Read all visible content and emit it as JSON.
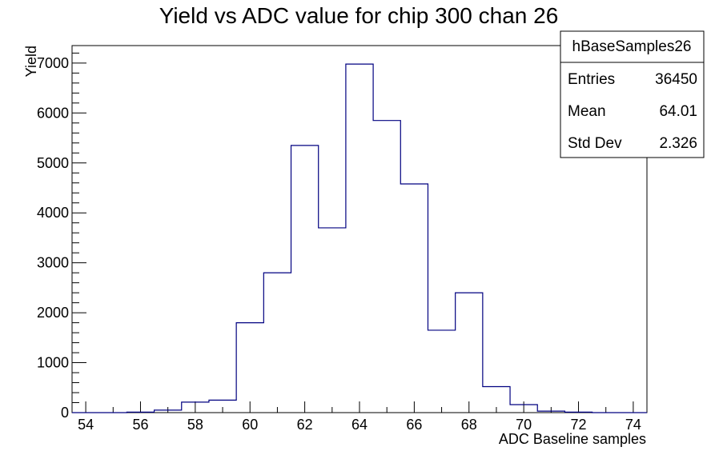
{
  "chart_data": {
    "type": "bar",
    "title": "Yield vs ADC value for chip 300 chan 26",
    "xlabel": "ADC Baseline samples",
    "ylabel": "Yield",
    "xlim": [
      53.5,
      74.5
    ],
    "ylim": [
      0,
      7350
    ],
    "x_ticks": [
      "54",
      "56",
      "58",
      "60",
      "62",
      "64",
      "66",
      "68",
      "70",
      "72",
      "74"
    ],
    "y_ticks": [
      "0",
      "1000",
      "2000",
      "3000",
      "4000",
      "5000",
      "6000",
      "7000"
    ],
    "bin_width": 1,
    "bin_centers": [
      54,
      55,
      56,
      57,
      58,
      59,
      60,
      61,
      62,
      63,
      64,
      65,
      66,
      67,
      68,
      69,
      70,
      71,
      72,
      73,
      74
    ],
    "values": [
      0,
      0,
      10,
      50,
      210,
      250,
      1800,
      2800,
      5350,
      3700,
      6980,
      5850,
      4580,
      1650,
      2400,
      520,
      160,
      30,
      10,
      0,
      0
    ],
    "grid": false,
    "legend": "none",
    "colors": {
      "histogram_line": "#000080",
      "axes": "#000000"
    }
  },
  "stats_box": {
    "name": "hBaseSamples26",
    "rows": [
      {
        "label": "Entries",
        "value": "36450"
      },
      {
        "label": "Mean",
        "value": "64.01"
      },
      {
        "label": "Std Dev",
        "value": "2.326"
      }
    ]
  }
}
